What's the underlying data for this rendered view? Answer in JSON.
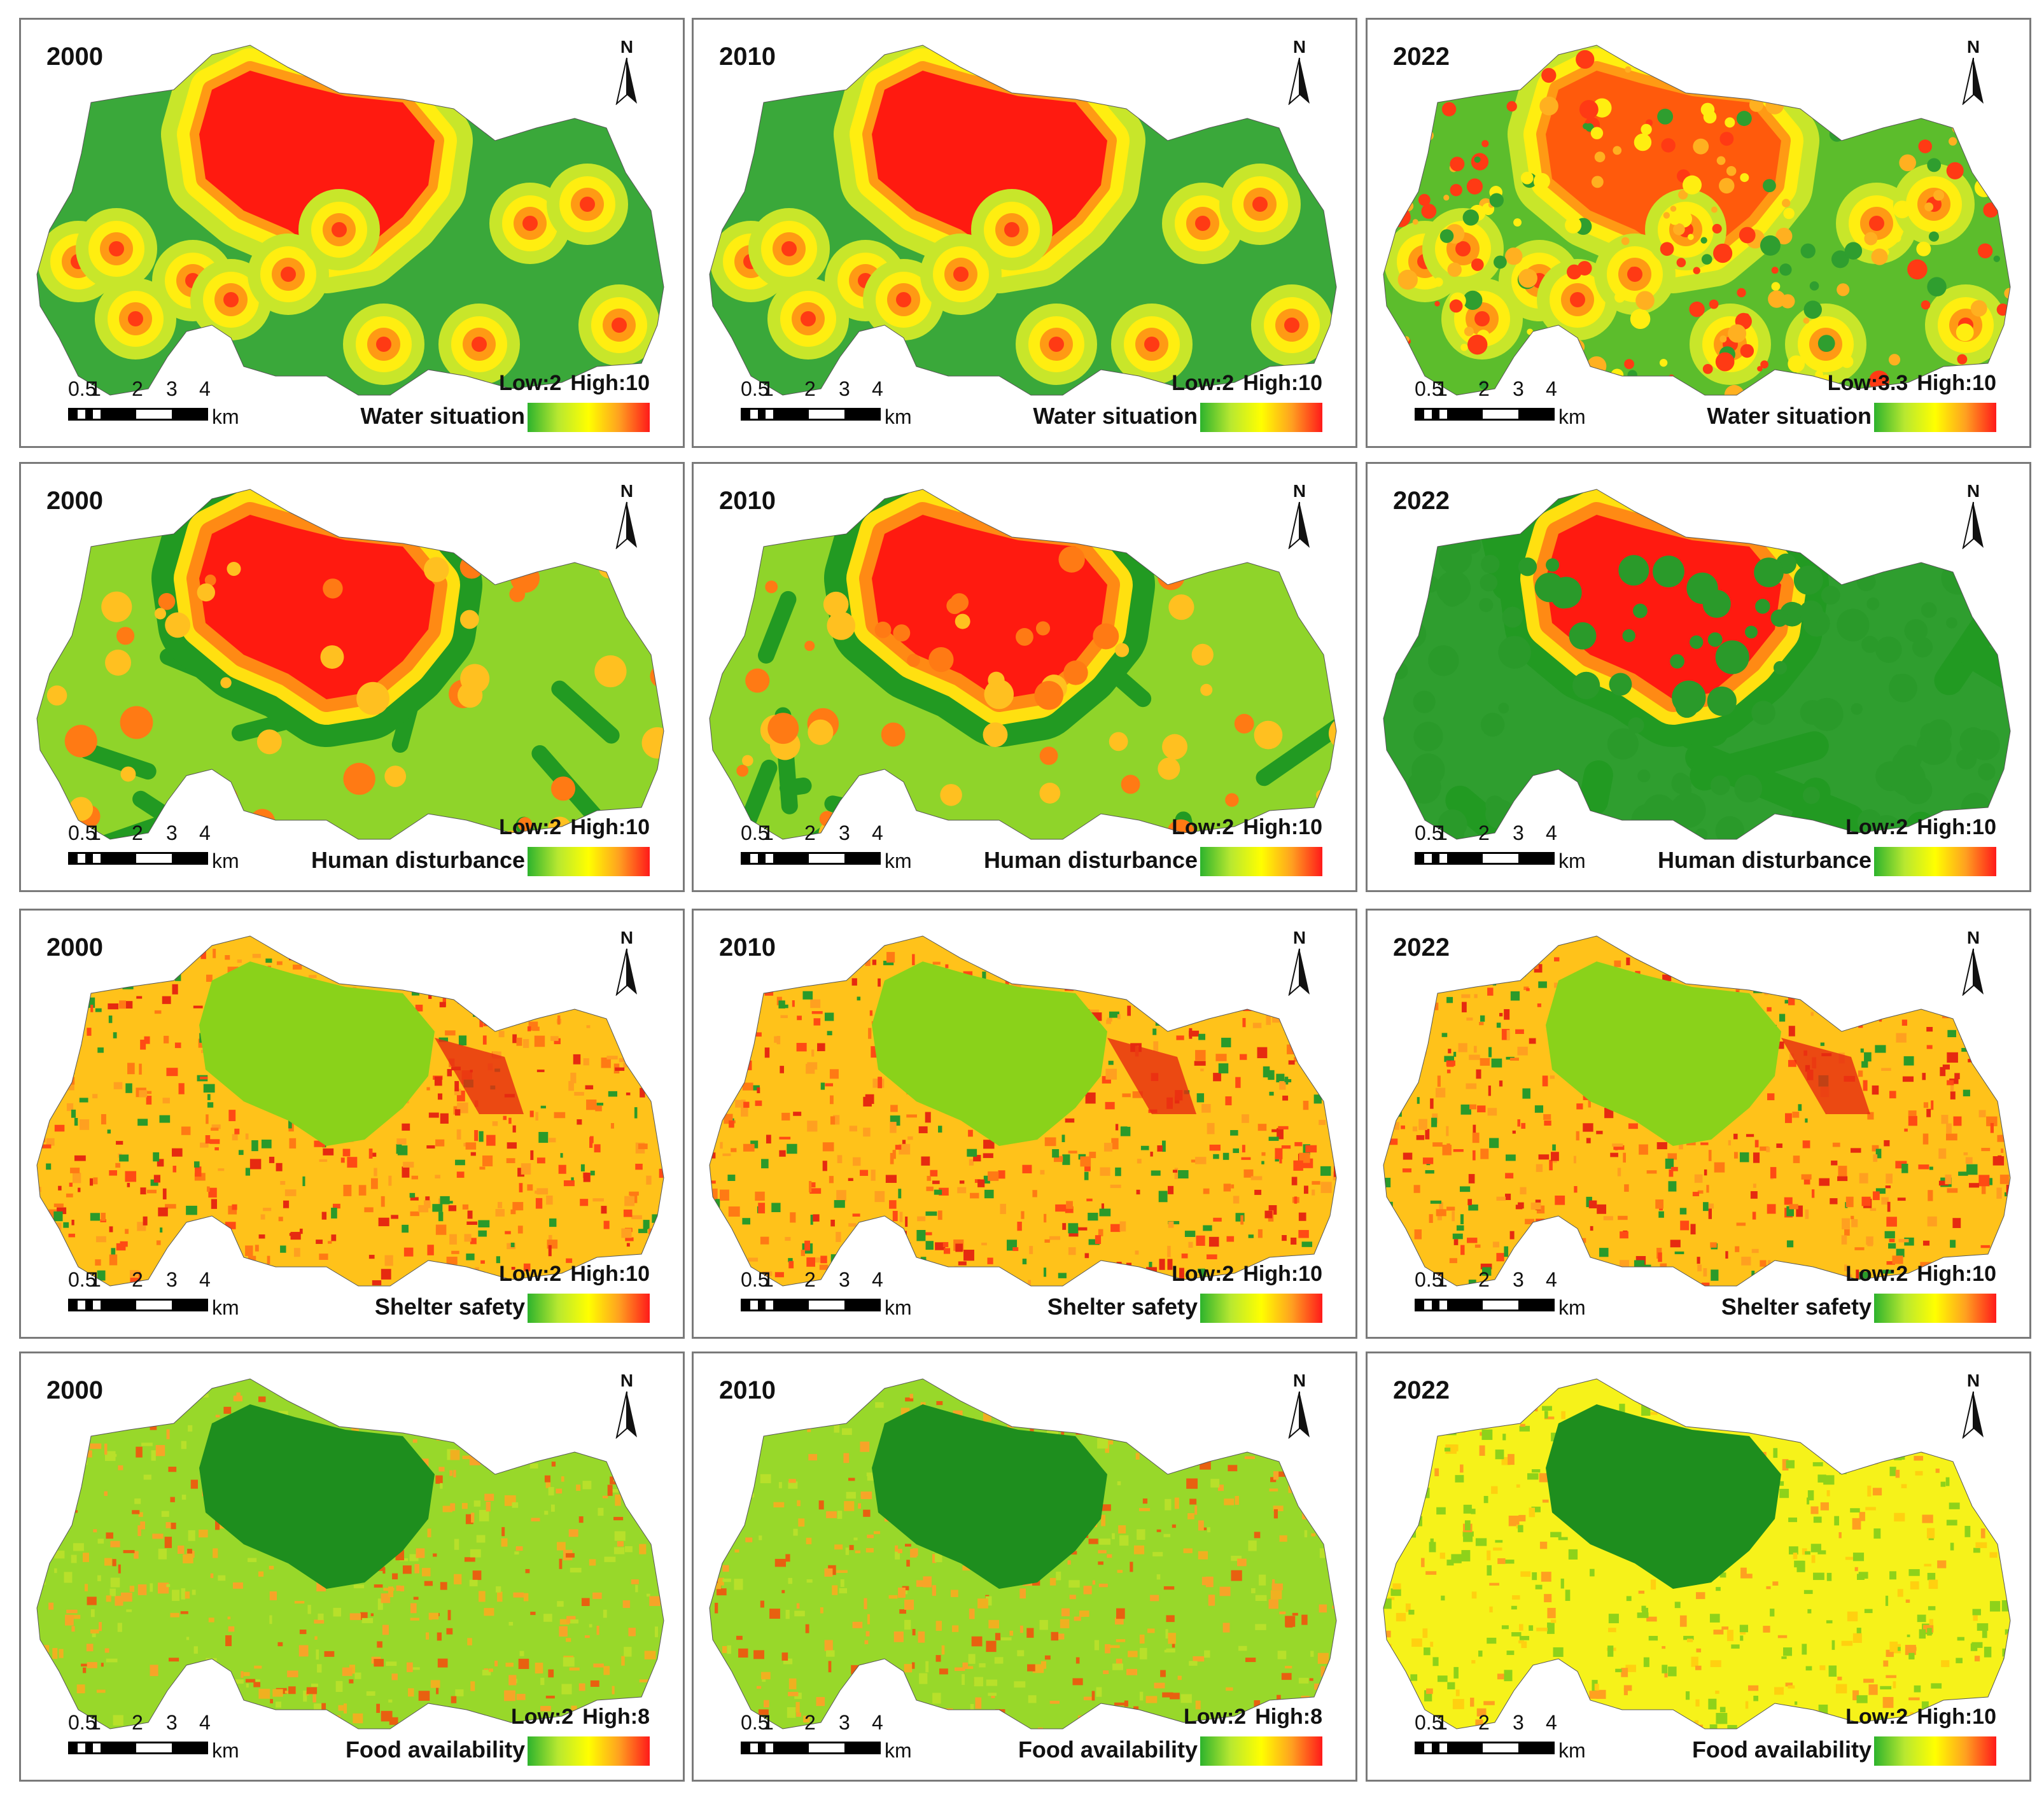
{
  "scale_bar": {
    "ticks": [
      "0.5",
      "1",
      "2",
      "3",
      "4"
    ],
    "unit": "km"
  },
  "north_label": "N",
  "panels": [
    {
      "year": "2000",
      "indicator": "Water situation",
      "low": "Low:2",
      "high": "High:10",
      "style": "water"
    },
    {
      "year": "2010",
      "indicator": "Water situation",
      "low": "Low:2",
      "high": "High:10",
      "style": "water"
    },
    {
      "year": "2022",
      "indicator": "Water situation",
      "low": "Low:3.3",
      "high": "High:10",
      "style": "water22"
    },
    {
      "year": "2000",
      "indicator": "Human disturbance",
      "low": "Low:2",
      "high": "High:10",
      "style": "human"
    },
    {
      "year": "2010",
      "indicator": "Human disturbance",
      "low": "Low:2",
      "high": "High:10",
      "style": "human"
    },
    {
      "year": "2022",
      "indicator": "Human disturbance",
      "low": "Low:2",
      "high": "High:10",
      "style": "human22"
    },
    {
      "year": "2000",
      "indicator": "Shelter safety",
      "low": "Low:2",
      "high": "High:10",
      "style": "shelter"
    },
    {
      "year": "2010",
      "indicator": "Shelter safety",
      "low": "Low:2",
      "high": "High:10",
      "style": "shelter"
    },
    {
      "year": "2022",
      "indicator": "Shelter safety",
      "low": "Low:2",
      "high": "High:10",
      "style": "shelter"
    },
    {
      "year": "2000",
      "indicator": "Food availability",
      "low": "Low:2",
      "high": "High:8",
      "style": "food"
    },
    {
      "year": "2010",
      "indicator": "Food availability",
      "low": "Low:2",
      "high": "High:8",
      "style": "food"
    },
    {
      "year": "2022",
      "indicator": "Food availability",
      "low": "Low:2",
      "high": "High:10",
      "style": "food22"
    }
  ],
  "colors": {
    "low": "#2db32d",
    "mid": "#ffff00",
    "high": "#ff1a1a"
  }
}
